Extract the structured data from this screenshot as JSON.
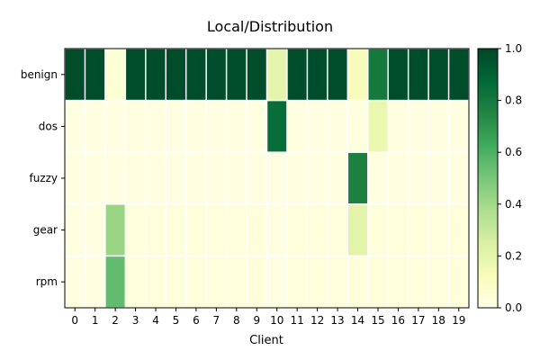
{
  "chart_data": {
    "type": "heatmap",
    "title": "Local/Distribution",
    "xlabel": "Client",
    "ylabel": "",
    "x_categories": [
      "0",
      "1",
      "2",
      "3",
      "4",
      "5",
      "6",
      "7",
      "8",
      "9",
      "10",
      "11",
      "12",
      "13",
      "14",
      "15",
      "16",
      "17",
      "18",
      "19"
    ],
    "y_categories": [
      "benign",
      "dos",
      "fuzzy",
      "gear",
      "rpm"
    ],
    "values": [
      [
        0.97,
        0.97,
        0.05,
        0.97,
        0.97,
        0.97,
        0.97,
        0.97,
        0.97,
        0.97,
        0.2,
        0.97,
        0.97,
        0.97,
        0.12,
        0.8,
        0.97,
        0.97,
        0.97,
        0.97
      ],
      [
        0.01,
        0.01,
        0.01,
        0.01,
        0.01,
        0.01,
        0.01,
        0.01,
        0.01,
        0.01,
        0.85,
        0.01,
        0.01,
        0.01,
        0.02,
        0.18,
        0.01,
        0.01,
        0.01,
        0.01
      ],
      [
        0.01,
        0.01,
        0.01,
        0.01,
        0.01,
        0.01,
        0.01,
        0.01,
        0.01,
        0.01,
        0.01,
        0.01,
        0.01,
        0.01,
        0.77,
        0.01,
        0.01,
        0.01,
        0.01,
        0.01
      ],
      [
        0.01,
        0.01,
        0.42,
        0.03,
        0.03,
        0.03,
        0.03,
        0.03,
        0.03,
        0.03,
        0.01,
        0.03,
        0.03,
        0.03,
        0.21,
        0.03,
        0.03,
        0.03,
        0.03,
        0.03
      ],
      [
        0.01,
        0.01,
        0.55,
        0.03,
        0.03,
        0.03,
        0.03,
        0.03,
        0.03,
        0.03,
        0.01,
        0.03,
        0.03,
        0.03,
        0.03,
        0.03,
        0.03,
        0.03,
        0.03,
        0.03
      ]
    ],
    "colorbar": {
      "min": 0.0,
      "max": 1.0,
      "ticks": [
        "0.0",
        "0.2",
        "0.4",
        "0.6",
        "0.8",
        "1.0"
      ],
      "colormap": "YlGn"
    }
  }
}
